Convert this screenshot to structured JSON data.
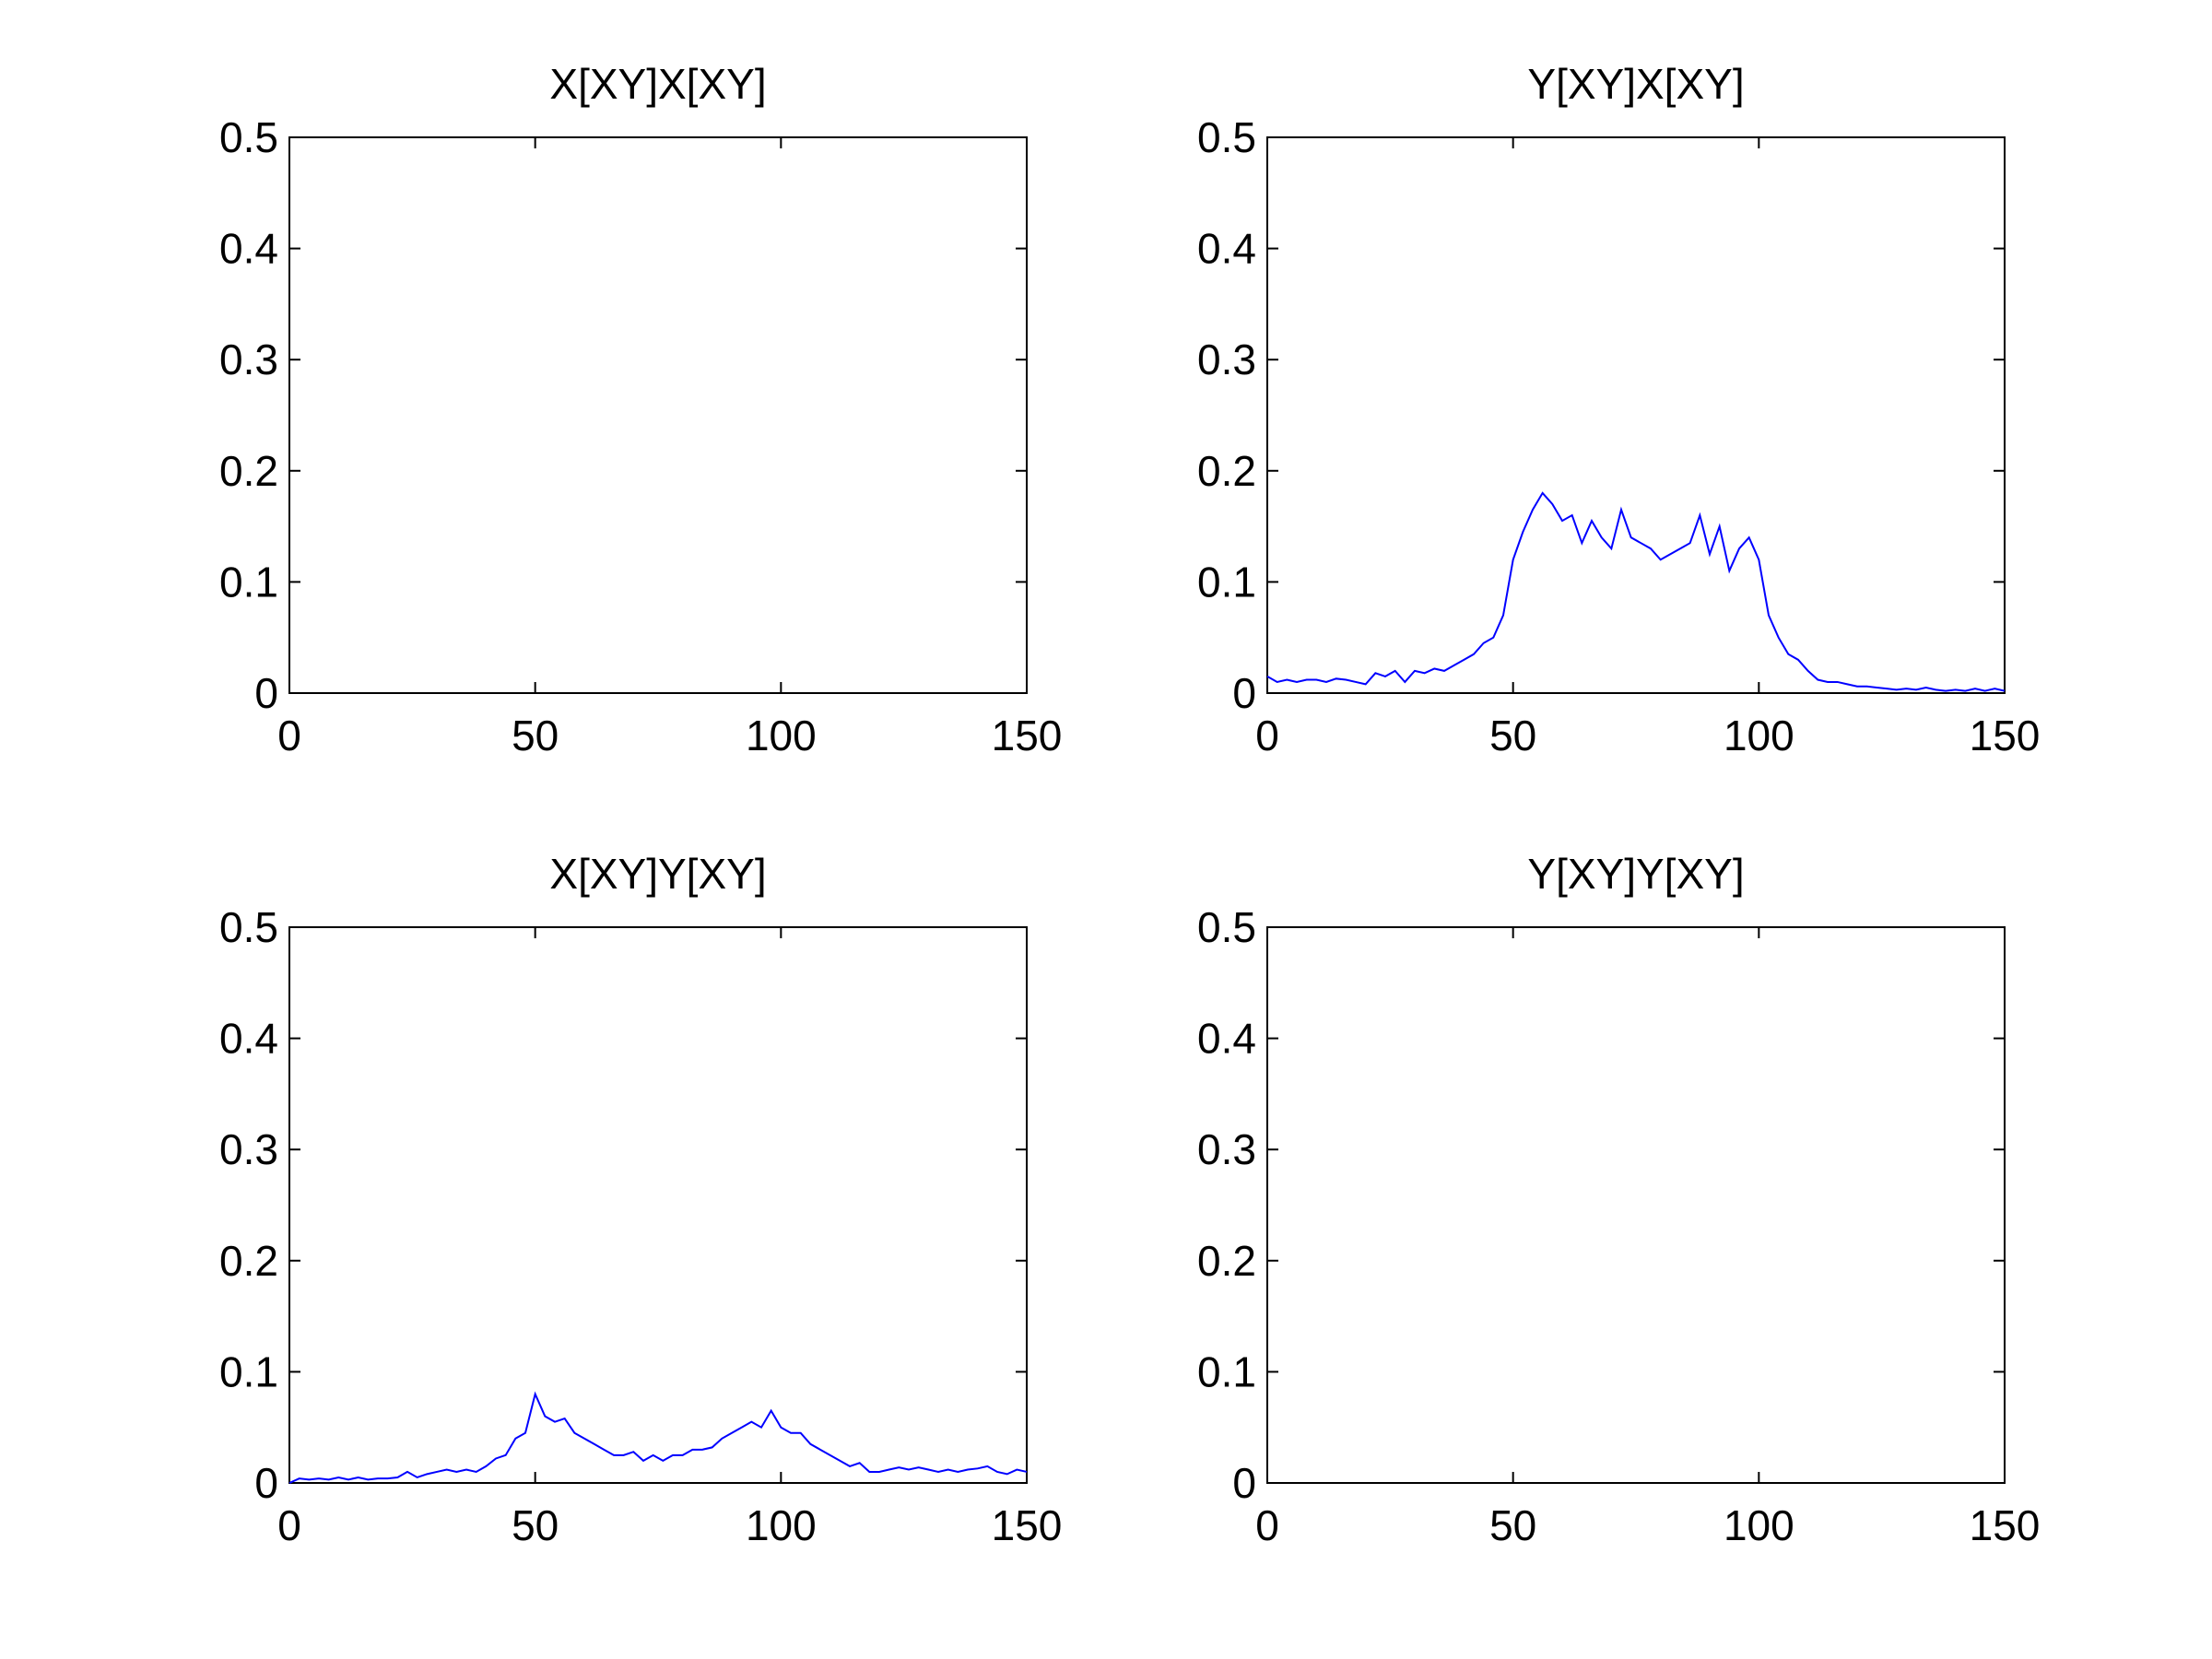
{
  "chart_data": [
    {
      "type": "line",
      "title": "X[XY]X[XY]",
      "xlim": [
        0,
        150
      ],
      "ylim": [
        0,
        0.5
      ],
      "xticks": [
        0,
        50,
        100,
        150
      ],
      "yticks": [
        0,
        0.1,
        0.2,
        0.3,
        0.4,
        0.5
      ]
    },
    {
      "type": "line",
      "title": "Y[XY]X[XY]",
      "xlim": [
        0,
        150
      ],
      "ylim": [
        0,
        0.5
      ],
      "xticks": [
        0,
        50,
        100,
        150
      ],
      "yticks": [
        0,
        0.1,
        0.2,
        0.3,
        0.4,
        0.5
      ],
      "x": [
        0,
        2,
        4,
        6,
        8,
        10,
        12,
        14,
        16,
        18,
        20,
        22,
        24,
        26,
        28,
        30,
        32,
        34,
        36,
        38,
        40,
        42,
        44,
        46,
        48,
        50,
        52,
        54,
        56,
        58,
        60,
        62,
        64,
        66,
        68,
        70,
        72,
        74,
        76,
        78,
        80,
        82,
        84,
        86,
        88,
        90,
        92,
        94,
        96,
        98,
        100,
        102,
        104,
        106,
        108,
        110,
        112,
        114,
        116,
        118,
        120,
        122,
        124,
        126,
        128,
        130,
        132,
        134,
        136,
        138,
        140,
        142,
        144,
        146,
        148,
        150
      ],
      "series": [
        {
          "color": "#0000ff",
          "values": [
            0.015,
            0.01,
            0.012,
            0.01,
            0.012,
            0.012,
            0.01,
            0.013,
            0.012,
            0.01,
            0.008,
            0.018,
            0.015,
            0.02,
            0.01,
            0.02,
            0.018,
            0.022,
            0.02,
            0.025,
            0.03,
            0.035,
            0.045,
            0.05,
            0.07,
            0.12,
            0.145,
            0.165,
            0.18,
            0.17,
            0.155,
            0.16,
            0.135,
            0.155,
            0.14,
            0.13,
            0.165,
            0.14,
            0.135,
            0.13,
            0.12,
            0.125,
            0.13,
            0.135,
            0.16,
            0.125,
            0.15,
            0.11,
            0.13,
            0.14,
            0.12,
            0.07,
            0.05,
            0.035,
            0.03,
            0.02,
            0.012,
            0.01,
            0.01,
            0.008,
            0.006,
            0.006,
            0.005,
            0.004,
            0.003,
            0.004,
            0.003,
            0.005,
            0.003,
            0.002,
            0.003,
            0.002,
            0.004,
            0.002,
            0.004,
            0.002
          ]
        }
      ]
    },
    {
      "type": "line",
      "title": "X[XY]Y[XY]",
      "xlim": [
        0,
        150
      ],
      "ylim": [
        0,
        0.5
      ],
      "xticks": [
        0,
        50,
        100,
        150
      ],
      "yticks": [
        0,
        0.1,
        0.2,
        0.3,
        0.4,
        0.5
      ],
      "x": [
        0,
        2,
        4,
        6,
        8,
        10,
        12,
        14,
        16,
        18,
        20,
        22,
        24,
        26,
        28,
        30,
        32,
        34,
        36,
        38,
        40,
        42,
        44,
        46,
        48,
        50,
        52,
        54,
        56,
        58,
        60,
        62,
        64,
        66,
        68,
        70,
        72,
        74,
        76,
        78,
        80,
        82,
        84,
        86,
        88,
        90,
        92,
        94,
        96,
        98,
        100,
        102,
        104,
        106,
        108,
        110,
        112,
        114,
        116,
        118,
        120,
        122,
        124,
        126,
        128,
        130,
        132,
        134,
        136,
        138,
        140,
        142,
        144,
        146,
        148,
        150
      ],
      "series": [
        {
          "color": "#0000ff",
          "values": [
            0,
            0.004,
            0.003,
            0.004,
            0.003,
            0.005,
            0.003,
            0.005,
            0.003,
            0.004,
            0.004,
            0.005,
            0.01,
            0.005,
            0.008,
            0.01,
            0.012,
            0.01,
            0.012,
            0.01,
            0.015,
            0.022,
            0.025,
            0.04,
            0.045,
            0.08,
            0.06,
            0.055,
            0.058,
            0.045,
            0.04,
            0.035,
            0.03,
            0.025,
            0.025,
            0.028,
            0.02,
            0.025,
            0.02,
            0.025,
            0.025,
            0.03,
            0.03,
            0.032,
            0.04,
            0.045,
            0.05,
            0.055,
            0.05,
            0.065,
            0.05,
            0.045,
            0.045,
            0.035,
            0.03,
            0.025,
            0.02,
            0.015,
            0.018,
            0.01,
            0.01,
            0.012,
            0.014,
            0.012,
            0.014,
            0.012,
            0.01,
            0.012,
            0.01,
            0.012,
            0.013,
            0.015,
            0.01,
            0.008,
            0.012,
            0.01
          ]
        }
      ]
    },
    {
      "type": "line",
      "title": "Y[XY]Y[XY]",
      "xlim": [
        0,
        150
      ],
      "ylim": [
        0,
        0.5
      ],
      "xticks": [
        0,
        50,
        100,
        150
      ],
      "yticks": [
        0,
        0.1,
        0.2,
        0.3,
        0.4,
        0.5
      ]
    }
  ]
}
